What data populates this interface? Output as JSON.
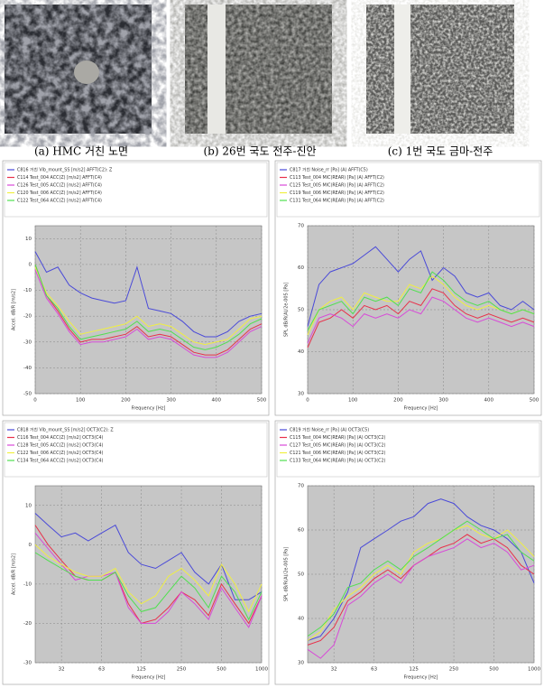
{
  "figure": {
    "captions": [
      "(a) HMC 거친 노면",
      "(b) 26번 국도 전주-진안",
      "(c) 1번 국도 금마-전주"
    ]
  },
  "chart_data": [
    {
      "type": "line",
      "xlabel": "Frequency [Hz]",
      "ylabel": "Accel. dB/R [m/s2]",
      "grid": true,
      "x": [
        0,
        25,
        50,
        75,
        100,
        125,
        150,
        175,
        200,
        225,
        250,
        275,
        300,
        325,
        350,
        375,
        400,
        425,
        450,
        475,
        500
      ],
      "xlim": [
        0,
        500
      ],
      "xticks": [
        0,
        100,
        200,
        300,
        400,
        500
      ],
      "ylim": [
        -50,
        15
      ],
      "yticks": [
        10,
        0,
        -10,
        -20,
        -30,
        -40,
        -50
      ],
      "series": [
        {
          "name": "C816 거친 Vib_mount_SS [m/s2] AFFT(C2): Z",
          "color": "#4a4ad8",
          "values": [
            5,
            -3,
            -1,
            -8,
            -11,
            -13,
            -14,
            -15,
            -14,
            -1,
            -17,
            -18,
            -19,
            -22,
            -26,
            -28,
            -28,
            -26,
            -22,
            -20,
            -19
          ]
        },
        {
          "name": "C114 Test_004 ACC(Z) [m/s2] AFFT(C4)",
          "color": "#e8304a",
          "values": [
            0,
            -12,
            -18,
            -25,
            -30,
            -29,
            -29,
            -28,
            -27,
            -24,
            -28,
            -27,
            -28,
            -31,
            -34,
            -35,
            -35,
            -33,
            -29,
            -25,
            -23
          ]
        },
        {
          "name": "C126 Test_005 ACC(Z) [m/s2] AFFT(C4)",
          "color": "#d84ad8",
          "values": [
            -2,
            -13,
            -19,
            -26,
            -31,
            -30,
            -30,
            -29,
            -28,
            -25,
            -29,
            -28,
            -29,
            -32,
            -35,
            -36,
            -36,
            -34,
            -30,
            -26,
            -24
          ]
        },
        {
          "name": "C120 Test_006 ACC(Z) [m/s2] AFFT(C4)",
          "color": "#f0f040",
          "values": [
            -1,
            -11,
            -16,
            -22,
            -27,
            -26,
            -25,
            -24,
            -23,
            -20,
            -24,
            -23,
            -24,
            -27,
            -30,
            -31,
            -30,
            -29,
            -25,
            -21,
            -20
          ]
        },
        {
          "name": "C122 Test_064 ACC(Z) [m/s2] AFFT(C4)",
          "color": "#50e050",
          "values": [
            0,
            -12,
            -17,
            -24,
            -29,
            -28,
            -27,
            -26,
            -25,
            -22,
            -26,
            -25,
            -26,
            -29,
            -32,
            -33,
            -32,
            -30,
            -27,
            -23,
            -21
          ]
        }
      ]
    },
    {
      "type": "line",
      "xlabel": "Frequency [Hz]",
      "ylabel": "SPL dB/R(A)/2e-005 [Pa]",
      "grid": true,
      "x": [
        0,
        25,
        50,
        75,
        100,
        125,
        150,
        175,
        200,
        225,
        250,
        275,
        300,
        325,
        350,
        375,
        400,
        425,
        450,
        475,
        500
      ],
      "xlim": [
        0,
        500
      ],
      "xticks": [
        0,
        100,
        200,
        300,
        400,
        500
      ],
      "ylim": [
        30,
        70
      ],
      "yticks": [
        70,
        60,
        50,
        40,
        30
      ],
      "series": [
        {
          "name": "C817 거친 Noise_rr [Pa] (A) AFFT(C5)",
          "color": "#4a4ad8",
          "values": [
            46,
            56,
            59,
            60,
            61,
            63,
            65,
            62,
            59,
            62,
            64,
            57,
            60,
            58,
            54,
            53,
            54,
            51,
            50,
            52,
            50
          ]
        },
        {
          "name": "C113 Test_004 MIC(REAR) [Pa] (A) AFFT(C2)",
          "color": "#e8304a",
          "values": [
            41,
            47,
            48,
            50,
            48,
            51,
            50,
            51,
            49,
            52,
            51,
            55,
            54,
            51,
            49,
            48,
            49,
            48,
            47,
            48,
            47
          ]
        },
        {
          "name": "C125 Test_005 MIC(REAR) [Pa] (A) AFFT(C2)",
          "color": "#d84ad8",
          "values": [
            42,
            48,
            49,
            48,
            46,
            49,
            48,
            49,
            48,
            50,
            49,
            53,
            52,
            50,
            48,
            47,
            48,
            47,
            46,
            47,
            46
          ]
        },
        {
          "name": "C119 Test_006 MIC(REAR) [Pa] (A) AFFT(C2)",
          "color": "#f0f040",
          "values": [
            44,
            50,
            52,
            53,
            50,
            54,
            53,
            52,
            52,
            56,
            55,
            58,
            56,
            53,
            51,
            50,
            51,
            50,
            49,
            50,
            49
          ]
        },
        {
          "name": "C131 Test_064 MIC(REAR) [Pa] (A) AFFT(C2)",
          "color": "#50e050",
          "values": [
            45,
            50,
            51,
            52,
            49,
            53,
            52,
            53,
            51,
            55,
            54,
            59,
            57,
            54,
            52,
            51,
            52,
            50,
            49,
            50,
            49
          ]
        }
      ]
    },
    {
      "type": "line",
      "xlabel": "Frequency [Hz]",
      "ylabel": "Accel. dB/R [m/s2]",
      "grid": true,
      "xscale": "log",
      "x": [
        20,
        25,
        31.5,
        40,
        50,
        63,
        80,
        100,
        125,
        160,
        200,
        250,
        315,
        400,
        500,
        630,
        800,
        1000
      ],
      "xlim": [
        20,
        1000
      ],
      "xticks": [
        {
          "value": 31.5,
          "label": "32"
        },
        63,
        125,
        250,
        500,
        1000
      ],
      "ylim": [
        -30,
        15
      ],
      "yticks": [
        10,
        0,
        -10,
        -20,
        -30
      ],
      "series": [
        {
          "name": "C818 거친 Vib_mount_SS [m/s2] OCT3(C2): Z",
          "color": "#4a4ad8",
          "values": [
            8,
            5,
            2,
            3,
            1,
            3,
            5,
            -2,
            -5,
            -6,
            -4,
            -2,
            -7,
            -10,
            -5,
            -14,
            -14,
            -12
          ]
        },
        {
          "name": "C116 Test_004 ACC(Z) [m/s2] OCT3(C4)",
          "color": "#e8304a",
          "values": [
            5,
            0,
            -4,
            -8,
            -9,
            -9,
            -7,
            -15,
            -20,
            -19,
            -16,
            -12,
            -14,
            -18,
            -10,
            -15,
            -20,
            -13
          ]
        },
        {
          "name": "C128 Test_005 ACC(Z) [m/s2] OCT3(C4)",
          "color": "#d84ad8",
          "values": [
            3,
            -1,
            -5,
            -9,
            -8,
            -8,
            -7,
            -16,
            -20,
            -20,
            -17,
            -12,
            -15,
            -19,
            -11,
            -16,
            -21,
            -13
          ]
        },
        {
          "name": "C122 Test_006 ACC(Z) [m/s2] OCT3(C4)",
          "color": "#f0f040",
          "values": [
            0,
            -3,
            -5,
            -7,
            -8,
            -8,
            -6,
            -12,
            -15,
            -13,
            -8,
            -6,
            -9,
            -13,
            -5,
            -10,
            -17,
            -10
          ]
        },
        {
          "name": "C134 Test_064 ACC(Z) [m/s2] OCT3(C4)",
          "color": "#50e050",
          "values": [
            -2,
            -4,
            -6,
            -8,
            -9,
            -9,
            -7,
            -13,
            -17,
            -16,
            -12,
            -8,
            -11,
            -16,
            -8,
            -12,
            -19,
            -12
          ]
        }
      ]
    },
    {
      "type": "line",
      "xlabel": "Frequency [Hz]",
      "ylabel": "SPL dB/R(A)/2e-005 [Pa]",
      "grid": true,
      "xscale": "log",
      "x": [
        20,
        25,
        31.5,
        40,
        50,
        63,
        80,
        100,
        125,
        160,
        200,
        250,
        315,
        400,
        500,
        630,
        800,
        1000
      ],
      "xlim": [
        20,
        1000
      ],
      "xticks": [
        {
          "value": 31.5,
          "label": "32"
        },
        63,
        125,
        250,
        500,
        1000
      ],
      "ylim": [
        30,
        70
      ],
      "yticks": [
        70,
        60,
        50,
        40,
        30
      ],
      "series": [
        {
          "name": "C819 거친 Noise_rr [Pa] (A) OCT3(C5)",
          "color": "#4a4ad8",
          "values": [
            35,
            36,
            40,
            46,
            56,
            58,
            60,
            62,
            63,
            66,
            67,
            66,
            63,
            61,
            60,
            58,
            55,
            48
          ]
        },
        {
          "name": "C115 Test_004 MIC(REAR) [Pa] (A) OCT3(C2)",
          "color": "#e8304a",
          "values": [
            34,
            35,
            38,
            44,
            46,
            49,
            51,
            49,
            52,
            54,
            56,
            57,
            59,
            57,
            58,
            56,
            52,
            50
          ]
        },
        {
          "name": "C127 Test_005 MIC(REAR) [Pa] (A) OCT3(C2)",
          "color": "#d84ad8",
          "values": [
            33,
            31,
            34,
            43,
            45,
            48,
            50,
            48,
            52,
            54,
            55,
            56,
            58,
            56,
            57,
            55,
            51,
            52
          ]
        },
        {
          "name": "C121 Test_006 MIC(REAR) [Pa] (A) OCT3(C2)",
          "color": "#f0f040",
          "values": [
            35,
            37,
            42,
            45,
            47,
            50,
            52,
            50,
            55,
            57,
            58,
            60,
            61,
            59,
            58,
            60,
            57,
            54
          ]
        },
        {
          "name": "C133 Test_064 MIC(REAR) [Pa] (A) OCT3(C2)",
          "color": "#50e050",
          "values": [
            36,
            38,
            41,
            47,
            48,
            51,
            53,
            51,
            54,
            56,
            58,
            60,
            62,
            60,
            58,
            59,
            55,
            53
          ]
        }
      ]
    }
  ]
}
